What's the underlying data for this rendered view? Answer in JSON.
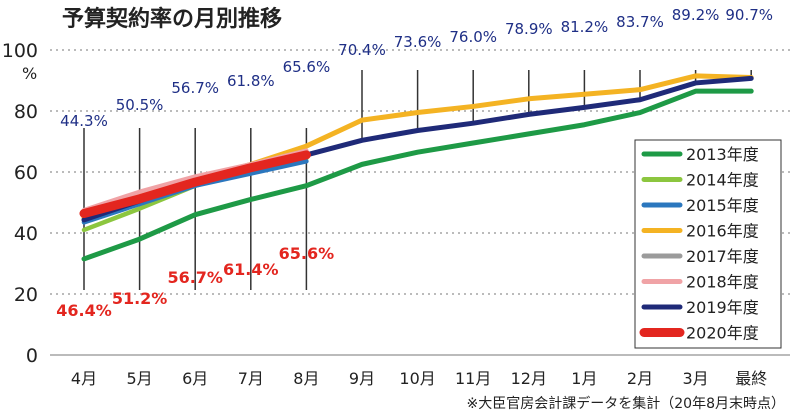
{
  "chart_data": {
    "type": "line",
    "title": "予算契約率の月別推移",
    "unit": "%",
    "note": "※大臣官房会計課データを集計（20年8月末時点）",
    "categories": [
      "4月",
      "5月",
      "6月",
      "7月",
      "8月",
      "9月",
      "10月",
      "11月",
      "12月",
      "1月",
      "2月",
      "3月",
      "最終"
    ],
    "yticks": [
      "0",
      "20",
      "40",
      "60",
      "80",
      "100"
    ],
    "ylim": [
      0,
      100
    ],
    "grid": true,
    "legend_position": "right",
    "series": [
      {
        "name": "2013年度",
        "color": "#1e9a46",
        "values": [
          31.5,
          38.0,
          46.0,
          51.0,
          55.5,
          62.5,
          66.5,
          69.5,
          72.5,
          75.5,
          79.5,
          86.5,
          86.5
        ]
      },
      {
        "name": "2014年度",
        "color": "#8cc63f",
        "values": [
          41.0,
          48.0,
          55.5,
          60.5,
          64.5,
          null,
          null,
          null,
          null,
          null,
          null,
          null,
          null
        ]
      },
      {
        "name": "2015年度",
        "color": "#2b77be",
        "values": [
          43.5,
          49.5,
          55.5,
          59.5,
          63.5,
          null,
          null,
          null,
          null,
          null,
          null,
          null,
          null
        ]
      },
      {
        "name": "2016年度",
        "color": "#f4b323",
        "values": [
          45.0,
          52.0,
          57.5,
          62.5,
          68.5,
          77.0,
          79.5,
          81.5,
          84.0,
          85.5,
          87.0,
          91.5,
          91.0
        ]
      },
      {
        "name": "2017年度",
        "color": "#9b9b9b",
        "values": [
          44.5,
          50.5,
          56.5,
          61.5,
          65.0,
          null,
          null,
          null,
          null,
          null,
          null,
          null,
          null
        ]
      },
      {
        "name": "2018年度",
        "color": "#f0a3a6",
        "values": [
          47.5,
          53.5,
          58.5,
          62.5,
          67.0,
          null,
          null,
          null,
          null,
          null,
          null,
          null,
          null
        ]
      },
      {
        "name": "2019年度",
        "color": "#1f2a78",
        "values": [
          44.3,
          50.5,
          56.7,
          61.8,
          65.6,
          70.4,
          73.6,
          76.0,
          78.9,
          81.2,
          83.7,
          89.2,
          90.7
        ]
      },
      {
        "name": "2020年度",
        "color": "#e3261f",
        "values": [
          46.4,
          51.2,
          56.7,
          61.4,
          65.6,
          null,
          null,
          null,
          null,
          null,
          null,
          null,
          null
        ]
      }
    ],
    "labels_2019": [
      "44.3%",
      "50.5%",
      "56.7%",
      "61.8%",
      "65.6%",
      "70.4%",
      "73.6%",
      "76.0%",
      "78.9%",
      "81.2%",
      "83.7%",
      "89.2%",
      "90.7%"
    ],
    "labels_2020": [
      "46.4%",
      "51.2%",
      "56.7%",
      "61.4%",
      "65.6%"
    ]
  }
}
